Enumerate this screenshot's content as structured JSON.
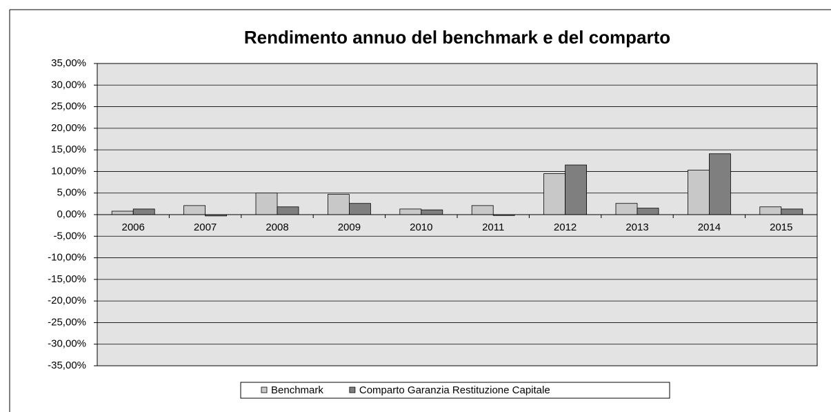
{
  "chart_data": {
    "type": "bar",
    "title": "Rendimento annuo del benchmark e del comparto",
    "categories": [
      "2006",
      "2007",
      "2008",
      "2009",
      "2010",
      "2011",
      "2012",
      "2013",
      "2014",
      "2015"
    ],
    "series": [
      {
        "name": "Benchmark",
        "color": "#c8c8c8",
        "values": [
          0.8,
          2.1,
          5.0,
          4.7,
          1.3,
          2.1,
          9.5,
          2.6,
          10.3,
          1.8
        ]
      },
      {
        "name": "Comparto Garanzia Restituzione Capitale",
        "color": "#7f7f7f",
        "values": [
          1.3,
          -0.3,
          1.8,
          2.6,
          1.1,
          -0.2,
          11.5,
          1.5,
          14.1,
          1.3
        ]
      }
    ],
    "ylim": [
      -35,
      35
    ],
    "yticks": [
      {
        "value": -35,
        "label": "-35,00%"
      },
      {
        "value": -30,
        "label": "-30,00%"
      },
      {
        "value": -25,
        "label": "-25,00%"
      },
      {
        "value": -20,
        "label": "-20,00%"
      },
      {
        "value": -15,
        "label": "-15,00%"
      },
      {
        "value": -10,
        "label": "-10,00%"
      },
      {
        "value": -5,
        "label": "-5,00%"
      },
      {
        "value": 0,
        "label": "0,00%"
      },
      {
        "value": 5,
        "label": "5,00%"
      },
      {
        "value": 10,
        "label": "10,00%"
      },
      {
        "value": 15,
        "label": "15,00%"
      },
      {
        "value": 20,
        "label": "20,00%"
      },
      {
        "value": 25,
        "label": "25,00%"
      },
      {
        "value": 30,
        "label": "30,00%"
      },
      {
        "value": 35,
        "label": "35,00%"
      }
    ],
    "grid": true,
    "legend": "bottom",
    "plot_background": "#e3e3e3"
  }
}
